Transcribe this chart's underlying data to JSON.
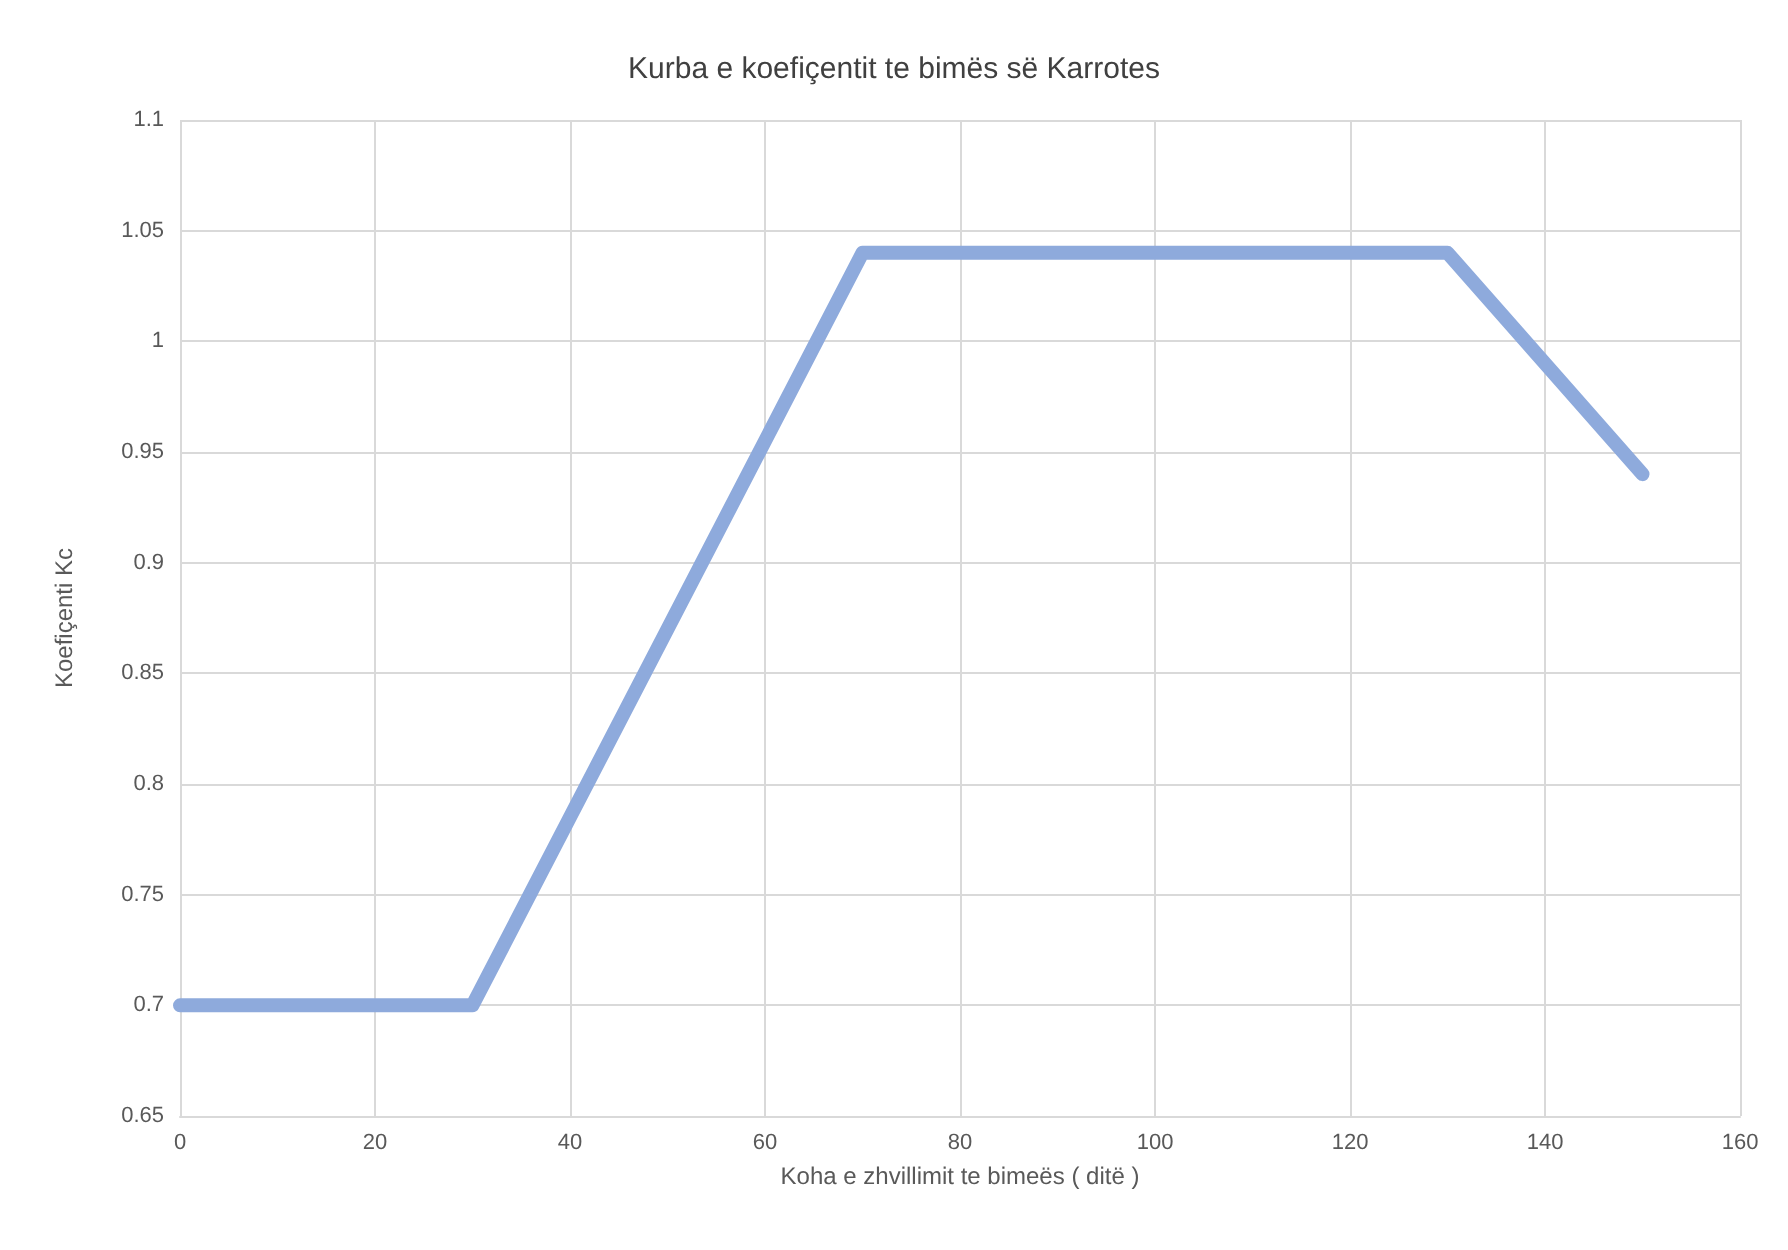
{
  "chart_data": {
    "type": "line",
    "title": "Kurba e koefiçentit te bimës së Karrotes",
    "xlabel": "Koha e zhvillimit te bimeës ( ditë )",
    "ylabel": "Koefiçenti Kc",
    "x": [
      0,
      30,
      70,
      130,
      150
    ],
    "series": [
      {
        "color": "#8eaadc",
        "values": [
          0.7,
          0.7,
          1.04,
          1.04,
          0.94
        ]
      }
    ],
    "xlim": [
      0,
      160
    ],
    "xticks": [
      0,
      20,
      40,
      60,
      80,
      100,
      120,
      140,
      160
    ],
    "ylim": [
      0.65,
      1.1
    ],
    "yticks": [
      0.65,
      0.7,
      0.75,
      0.8,
      0.85,
      0.9,
      0.95,
      1,
      1.05,
      1.1
    ],
    "grid": true,
    "marker": "none",
    "line_style": "solid"
  }
}
